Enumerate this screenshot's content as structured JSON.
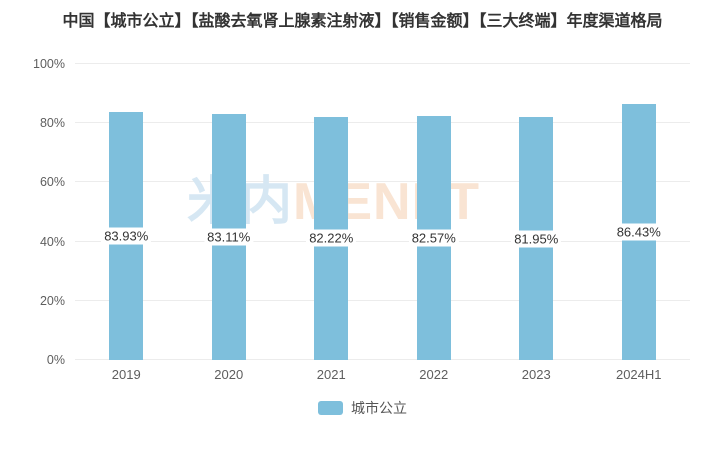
{
  "chart_data": {
    "type": "bar",
    "title": "中国【城市公立】【盐酸去氧肾上腺素注射液】【销售金额】【三大终端】年度渠道格局",
    "categories": [
      "2019",
      "2020",
      "2021",
      "2022",
      "2023",
      "2024H1"
    ],
    "series": [
      {
        "name": "城市公立",
        "values": [
          83.93,
          83.11,
          82.22,
          82.57,
          81.95,
          86.43
        ]
      }
    ],
    "value_labels": [
      "83.93%",
      "83.11%",
      "82.22%",
      "82.57%",
      "81.95%",
      "86.43%"
    ],
    "ylabel": "",
    "xlabel": "",
    "ylim": [
      0,
      100
    ],
    "yticks": [
      "0%",
      "20%",
      "40%",
      "60%",
      "80%",
      "100%"
    ],
    "grid": true,
    "legend": {
      "items": [
        "城市公立"
      ],
      "position": "bottom"
    },
    "colors": {
      "bar": "#7ebfdc",
      "grid": "#ececec",
      "axis_label": "#5e5e5e",
      "value_label": "#333333",
      "title": "#333333"
    }
  },
  "watermark": {
    "cn": "米内",
    "en": "MENET"
  }
}
